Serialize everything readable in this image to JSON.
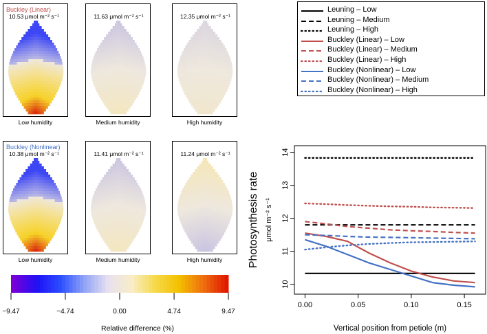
{
  "panels": [
    {
      "title": "Buckley (Linear)",
      "title_color": "#c0504d",
      "value": "10.53",
      "humidity": "Low humidity",
      "intensity": 1.0,
      "sign": 1
    },
    {
      "title": "",
      "value": "11.63",
      "humidity": "Medium humidity",
      "intensity": 0.22,
      "sign": 1
    },
    {
      "title": "",
      "value": "12.35",
      "humidity": "High humidity",
      "intensity": 0.12,
      "sign": 1
    },
    {
      "title": "Buckley (Nonlinear)",
      "title_color": "#4472c4",
      "value": "10.38",
      "humidity": "Low humidity",
      "intensity": 1.0,
      "sign": 1
    },
    {
      "title": "",
      "value": "11.41",
      "humidity": "Medium humidity",
      "intensity": 0.22,
      "sign": 1
    },
    {
      "title": "",
      "value": "11.24",
      "humidity": "High humidity",
      "intensity": 0.25,
      "sign": -1
    }
  ],
  "unit_text": "μmol m⁻² s⁻¹",
  "colorbar": {
    "ticks": [
      "−9.47",
      "−4.74",
      "0.00",
      "4.74",
      "9.47"
    ],
    "tick_values": [
      -9.47,
      -4.74,
      0.0,
      4.74,
      9.47
    ],
    "range": [
      -9.47,
      9.47
    ],
    "title": "Relative difference (%)",
    "colors": [
      "#7b00d6",
      "#1f10f5",
      "#2a4dff",
      "#8fa3f5",
      "#e8e0f0",
      "#f8eec8",
      "#f6da4a",
      "#f4c000",
      "#ef7010",
      "#e01a00"
    ]
  },
  "legend": {
    "entries": [
      {
        "label": "Leuning – Low",
        "color": "#000000",
        "style": "solid"
      },
      {
        "label": "Leuning – Medium",
        "color": "#000000",
        "style": "dashed"
      },
      {
        "label": "Leuning – High",
        "color": "#000000",
        "style": "dotted"
      },
      {
        "label": "Buckley (Linear) – Low",
        "color": "#c0504d",
        "style": "solid"
      },
      {
        "label": "Buckley (Linear) – Medium",
        "color": "#c0504d",
        "style": "dashed"
      },
      {
        "label": "Buckley (Linear) – High",
        "color": "#c0504d",
        "style": "dotted"
      },
      {
        "label": "Buckley (Nonlinear) – Low",
        "color": "#4472c4",
        "style": "solid"
      },
      {
        "label": "Buckley (Nonlinear) – Medium",
        "color": "#4472c4",
        "style": "dashed"
      },
      {
        "label": "Buckley (Nonlinear) – High",
        "color": "#4472c4",
        "style": "dotted"
      }
    ]
  },
  "chart_data": {
    "type": "line",
    "title": "",
    "xlabel": "Vertical position from petiole (m)",
    "ylabel": "Photosynthesis rate",
    "ylabel_unit": "μmol m⁻² s⁻¹",
    "xlim": [
      -0.01,
      0.17
    ],
    "ylim": [
      9.7,
      14.2
    ],
    "xticks": [
      0.0,
      0.05,
      0.1,
      0.15
    ],
    "xtick_labels": [
      "0.00",
      "0.05",
      "0.10",
      "0.15"
    ],
    "yticks": [
      10,
      11,
      12,
      13,
      14
    ],
    "ytick_labels": [
      "10",
      "11",
      "12",
      "13",
      "14"
    ],
    "x": [
      0.0,
      0.02,
      0.04,
      0.06,
      0.08,
      0.1,
      0.12,
      0.14,
      0.16
    ],
    "series": [
      {
        "name": "Leuning – Low",
        "color": "#000000",
        "style": "solid",
        "values": [
          10.33,
          10.33,
          10.33,
          10.33,
          10.33,
          10.33,
          10.33,
          10.33,
          10.33
        ]
      },
      {
        "name": "Leuning – Medium",
        "color": "#000000",
        "style": "dashed",
        "values": [
          11.8,
          11.8,
          11.8,
          11.8,
          11.8,
          11.8,
          11.8,
          11.8,
          11.8
        ]
      },
      {
        "name": "Leuning – High",
        "color": "#000000",
        "style": "dotted",
        "values": [
          13.83,
          13.83,
          13.83,
          13.83,
          13.83,
          13.83,
          13.83,
          13.83,
          13.83
        ]
      },
      {
        "name": "Buckley (Linear) – Low",
        "color": "#c0504d",
        "style": "solid",
        "values": [
          11.55,
          11.45,
          11.3,
          10.95,
          10.65,
          10.4,
          10.22,
          10.1,
          10.05
        ]
      },
      {
        "name": "Buckley (Linear) – Medium",
        "color": "#c0504d",
        "style": "dashed",
        "values": [
          11.9,
          11.83,
          11.75,
          11.7,
          11.65,
          11.62,
          11.6,
          11.57,
          11.55
        ]
      },
      {
        "name": "Buckley (Linear) – High",
        "color": "#c0504d",
        "style": "dotted",
        "values": [
          12.45,
          12.43,
          12.4,
          12.38,
          12.36,
          12.35,
          12.33,
          12.32,
          12.31
        ]
      },
      {
        "name": "Buckley (Nonlinear) – Low",
        "color": "#4472c4",
        "style": "solid",
        "values": [
          11.35,
          11.15,
          10.9,
          10.65,
          10.45,
          10.25,
          10.05,
          9.97,
          9.92
        ]
      },
      {
        "name": "Buckley (Nonlinear) – Medium",
        "color": "#4472c4",
        "style": "dashed",
        "values": [
          11.5,
          11.48,
          11.45,
          11.43,
          11.42,
          11.41,
          11.4,
          11.39,
          11.38
        ]
      },
      {
        "name": "Buckley (Nonlinear) – High",
        "color": "#4472c4",
        "style": "dotted",
        "values": [
          11.05,
          11.12,
          11.18,
          11.22,
          11.25,
          11.27,
          11.28,
          11.29,
          11.3
        ]
      }
    ]
  }
}
